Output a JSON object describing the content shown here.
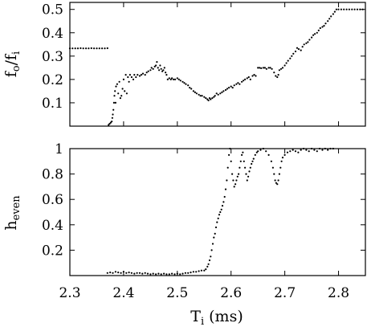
{
  "chart_data": [
    {
      "id": "ratio",
      "type": "scatter",
      "ylabel": {
        "main": "f",
        "sub1": "o",
        "mid": "/f",
        "sub2": "i"
      },
      "xlim": [
        2.3,
        2.85
      ],
      "ylim": [
        0,
        0.53
      ],
      "yticks": [
        0.1,
        0.2,
        0.3,
        0.4,
        0.5
      ],
      "xticks": [
        2.3,
        2.4,
        2.5,
        2.6,
        2.7,
        2.8
      ],
      "grid": false,
      "point_color": "#000000",
      "points": [
        [
          2.3,
          0.333
        ],
        [
          2.305,
          0.333
        ],
        [
          2.31,
          0.333
        ],
        [
          2.315,
          0.333
        ],
        [
          2.32,
          0.334
        ],
        [
          2.325,
          0.333
        ],
        [
          2.33,
          0.333
        ],
        [
          2.335,
          0.333
        ],
        [
          2.34,
          0.334
        ],
        [
          2.345,
          0.333
        ],
        [
          2.35,
          0.333
        ],
        [
          2.355,
          0.333
        ],
        [
          2.36,
          0.333
        ],
        [
          2.365,
          0.333
        ],
        [
          2.37,
          0.334
        ],
        [
          2.372,
          0.005
        ],
        [
          2.374,
          0.01
        ],
        [
          2.376,
          0.015
        ],
        [
          2.378,
          0.02
        ],
        [
          2.379,
          0.035
        ],
        [
          2.38,
          0.05
        ],
        [
          2.381,
          0.07
        ],
        [
          2.382,
          0.1
        ],
        [
          2.383,
          0.13
        ],
        [
          2.384,
          0.15
        ],
        [
          2.385,
          0.1
        ],
        [
          2.386,
          0.17
        ],
        [
          2.388,
          0.18
        ],
        [
          2.39,
          0.14
        ],
        [
          2.392,
          0.19
        ],
        [
          2.394,
          0.12
        ],
        [
          2.396,
          0.13
        ],
        [
          2.398,
          0.16
        ],
        [
          2.4,
          0.2
        ],
        [
          2.402,
          0.15
        ],
        [
          2.404,
          0.22
        ],
        [
          2.406,
          0.14
        ],
        [
          2.408,
          0.21
        ],
        [
          2.41,
          0.19
        ],
        [
          2.412,
          0.22
        ],
        [
          2.415,
          0.21
        ],
        [
          2.418,
          0.2
        ],
        [
          2.42,
          0.22
        ],
        [
          2.423,
          0.21
        ],
        [
          2.426,
          0.22
        ],
        [
          2.43,
          0.215
        ],
        [
          2.433,
          0.22
        ],
        [
          2.436,
          0.225
        ],
        [
          2.44,
          0.22
        ],
        [
          2.443,
          0.23
        ],
        [
          2.446,
          0.235
        ],
        [
          2.45,
          0.24
        ],
        [
          2.452,
          0.25
        ],
        [
          2.455,
          0.245
        ],
        [
          2.458,
          0.255
        ],
        [
          2.46,
          0.26
        ],
        [
          2.462,
          0.275
        ],
        [
          2.464,
          0.25
        ],
        [
          2.466,
          0.24
        ],
        [
          2.468,
          0.26
        ],
        [
          2.47,
          0.245
        ],
        [
          2.472,
          0.235
        ],
        [
          2.474,
          0.24
        ],
        [
          2.476,
          0.25
        ],
        [
          2.478,
          0.23
        ],
        [
          2.48,
          0.22
        ],
        [
          2.482,
          0.2
        ],
        [
          2.485,
          0.205
        ],
        [
          2.488,
          0.2
        ],
        [
          2.49,
          0.205
        ],
        [
          2.493,
          0.2
        ],
        [
          2.496,
          0.2
        ],
        [
          2.5,
          0.205
        ],
        [
          2.503,
          0.2
        ],
        [
          2.506,
          0.195
        ],
        [
          2.51,
          0.19
        ],
        [
          2.513,
          0.185
        ],
        [
          2.516,
          0.18
        ],
        [
          2.52,
          0.175
        ],
        [
          2.523,
          0.165
        ],
        [
          2.526,
          0.16
        ],
        [
          2.53,
          0.15
        ],
        [
          2.533,
          0.145
        ],
        [
          2.536,
          0.14
        ],
        [
          2.54,
          0.135
        ],
        [
          2.543,
          0.13
        ],
        [
          2.546,
          0.13
        ],
        [
          2.55,
          0.125
        ],
        [
          2.553,
          0.12
        ],
        [
          2.556,
          0.115
        ],
        [
          2.558,
          0.11
        ],
        [
          2.56,
          0.12
        ],
        [
          2.562,
          0.115
        ],
        [
          2.565,
          0.12
        ],
        [
          2.568,
          0.125
        ],
        [
          2.57,
          0.13
        ],
        [
          2.573,
          0.14
        ],
        [
          2.576,
          0.135
        ],
        [
          2.58,
          0.14
        ],
        [
          2.583,
          0.145
        ],
        [
          2.586,
          0.15
        ],
        [
          2.59,
          0.155
        ],
        [
          2.593,
          0.16
        ],
        [
          2.596,
          0.165
        ],
        [
          2.6,
          0.17
        ],
        [
          2.603,
          0.165
        ],
        [
          2.606,
          0.175
        ],
        [
          2.61,
          0.18
        ],
        [
          2.613,
          0.185
        ],
        [
          2.616,
          0.18
        ],
        [
          2.62,
          0.19
        ],
        [
          2.623,
          0.195
        ],
        [
          2.626,
          0.2
        ],
        [
          2.63,
          0.205
        ],
        [
          2.633,
          0.21
        ],
        [
          2.636,
          0.2
        ],
        [
          2.64,
          0.215
        ],
        [
          2.643,
          0.22
        ],
        [
          2.646,
          0.215
        ],
        [
          2.65,
          0.25
        ],
        [
          2.653,
          0.25
        ],
        [
          2.656,
          0.248
        ],
        [
          2.66,
          0.25
        ],
        [
          2.663,
          0.25
        ],
        [
          2.666,
          0.245
        ],
        [
          2.67,
          0.25
        ],
        [
          2.673,
          0.25
        ],
        [
          2.676,
          0.245
        ],
        [
          2.68,
          0.23
        ],
        [
          2.683,
          0.215
        ],
        [
          2.686,
          0.21
        ],
        [
          2.688,
          0.22
        ],
        [
          2.69,
          0.24
        ],
        [
          2.693,
          0.245
        ],
        [
          2.696,
          0.25
        ],
        [
          2.7,
          0.26
        ],
        [
          2.703,
          0.27
        ],
        [
          2.706,
          0.28
        ],
        [
          2.71,
          0.29
        ],
        [
          2.713,
          0.3
        ],
        [
          2.716,
          0.31
        ],
        [
          2.72,
          0.32
        ],
        [
          2.723,
          0.335
        ],
        [
          2.726,
          0.33
        ],
        [
          2.73,
          0.325
        ],
        [
          2.733,
          0.34
        ],
        [
          2.736,
          0.35
        ],
        [
          2.74,
          0.355
        ],
        [
          2.743,
          0.36
        ],
        [
          2.746,
          0.37
        ],
        [
          2.75,
          0.38
        ],
        [
          2.753,
          0.39
        ],
        [
          2.756,
          0.395
        ],
        [
          2.76,
          0.4
        ],
        [
          2.763,
          0.41
        ],
        [
          2.766,
          0.42
        ],
        [
          2.77,
          0.425
        ],
        [
          2.773,
          0.43
        ],
        [
          2.776,
          0.44
        ],
        [
          2.78,
          0.45
        ],
        [
          2.783,
          0.46
        ],
        [
          2.786,
          0.47
        ],
        [
          2.79,
          0.48
        ],
        [
          2.793,
          0.49
        ],
        [
          2.796,
          0.5
        ],
        [
          2.8,
          0.5
        ],
        [
          2.805,
          0.5
        ],
        [
          2.81,
          0.5
        ],
        [
          2.815,
          0.5
        ],
        [
          2.82,
          0.5
        ],
        [
          2.825,
          0.5
        ],
        [
          2.83,
          0.5
        ],
        [
          2.835,
          0.5
        ],
        [
          2.84,
          0.5
        ],
        [
          2.845,
          0.5
        ]
      ]
    },
    {
      "id": "heven",
      "type": "scatter",
      "ylabel": {
        "main": "h",
        "sub1": "even"
      },
      "xlabel": {
        "main": "T",
        "sub1": "i",
        "rest": " (ms)"
      },
      "xlim": [
        2.3,
        2.85
      ],
      "ylim": [
        0,
        1
      ],
      "yticks": [
        0.2,
        0.4,
        0.6,
        0.8,
        1
      ],
      "ytick_labels": [
        "0.2",
        "0.4",
        "0.6",
        "0.8",
        "1"
      ],
      "xticks": [
        2.3,
        2.4,
        2.5,
        2.6,
        2.7,
        2.8
      ],
      "xtick_labels": [
        "2.3",
        "2.4",
        "2.5",
        "2.6",
        "2.7",
        "2.8"
      ],
      "grid": false,
      "point_color": "#000000",
      "points": [
        [
          2.37,
          0.02
        ],
        [
          2.375,
          0.025
        ],
        [
          2.38,
          0.02
        ],
        [
          2.385,
          0.03
        ],
        [
          2.39,
          0.025
        ],
        [
          2.395,
          0.02
        ],
        [
          2.4,
          0.03
        ],
        [
          2.405,
          0.02
        ],
        [
          2.41,
          0.025
        ],
        [
          2.415,
          0.02
        ],
        [
          2.42,
          0.015
        ],
        [
          2.425,
          0.02
        ],
        [
          2.43,
          0.02
        ],
        [
          2.435,
          0.015
        ],
        [
          2.44,
          0.02
        ],
        [
          2.445,
          0.015
        ],
        [
          2.45,
          0.01
        ],
        [
          2.455,
          0.015
        ],
        [
          2.46,
          0.01
        ],
        [
          2.465,
          0.015
        ],
        [
          2.47,
          0.01
        ],
        [
          2.475,
          0.015
        ],
        [
          2.48,
          0.01
        ],
        [
          2.485,
          0.01
        ],
        [
          2.49,
          0.015
        ],
        [
          2.495,
          0.01
        ],
        [
          2.5,
          0.015
        ],
        [
          2.505,
          0.01
        ],
        [
          2.51,
          0.015
        ],
        [
          2.515,
          0.02
        ],
        [
          2.52,
          0.02
        ],
        [
          2.525,
          0.025
        ],
        [
          2.53,
          0.03
        ],
        [
          2.535,
          0.03
        ],
        [
          2.54,
          0.035
        ],
        [
          2.545,
          0.04
        ],
        [
          2.55,
          0.04
        ],
        [
          2.553,
          0.05
        ],
        [
          2.556,
          0.07
        ],
        [
          2.558,
          0.09
        ],
        [
          2.56,
          0.12
        ],
        [
          2.562,
          0.15
        ],
        [
          2.564,
          0.2
        ],
        [
          2.566,
          0.25
        ],
        [
          2.568,
          0.3
        ],
        [
          2.57,
          0.33
        ],
        [
          2.572,
          0.38
        ],
        [
          2.574,
          0.42
        ],
        [
          2.576,
          0.45
        ],
        [
          2.578,
          0.48
        ],
        [
          2.58,
          0.5
        ],
        [
          2.582,
          0.52
        ],
        [
          2.584,
          0.55
        ],
        [
          2.586,
          0.58
        ],
        [
          2.588,
          0.62
        ],
        [
          2.59,
          0.68
        ],
        [
          2.592,
          0.75
        ],
        [
          2.594,
          0.85
        ],
        [
          2.596,
          0.95
        ],
        [
          2.598,
          1.0
        ],
        [
          2.6,
          0.9
        ],
        [
          2.602,
          0.8
        ],
        [
          2.604,
          0.75
        ],
        [
          2.606,
          0.7
        ],
        [
          2.608,
          0.72
        ],
        [
          2.61,
          0.75
        ],
        [
          2.612,
          0.78
        ],
        [
          2.614,
          0.8
        ],
        [
          2.616,
          0.85
        ],
        [
          2.618,
          0.9
        ],
        [
          2.62,
          0.95
        ],
        [
          2.622,
          0.97
        ],
        [
          2.624,
          0.9
        ],
        [
          2.626,
          0.85
        ],
        [
          2.628,
          0.8
        ],
        [
          2.63,
          0.75
        ],
        [
          2.632,
          0.78
        ],
        [
          2.634,
          0.82
        ],
        [
          2.636,
          0.85
        ],
        [
          2.638,
          0.88
        ],
        [
          2.64,
          0.9
        ],
        [
          2.642,
          0.92
        ],
        [
          2.645,
          0.95
        ],
        [
          2.648,
          0.97
        ],
        [
          2.65,
          0.98
        ],
        [
          2.655,
          0.99
        ],
        [
          2.66,
          1.0
        ],
        [
          2.665,
          0.98
        ],
        [
          2.67,
          0.95
        ],
        [
          2.675,
          0.9
        ],
        [
          2.678,
          0.85
        ],
        [
          2.68,
          0.8
        ],
        [
          2.682,
          0.75
        ],
        [
          2.684,
          0.73
        ],
        [
          2.686,
          0.72
        ],
        [
          2.688,
          0.75
        ],
        [
          2.69,
          0.8
        ],
        [
          2.692,
          0.85
        ],
        [
          2.694,
          0.9
        ],
        [
          2.696,
          0.93
        ],
        [
          2.7,
          0.95
        ],
        [
          2.705,
          0.97
        ],
        [
          2.71,
          0.98
        ],
        [
          2.715,
          0.99
        ],
        [
          2.72,
          0.98
        ],
        [
          2.725,
          0.97
        ],
        [
          2.73,
          0.99
        ],
        [
          2.735,
          1.0
        ],
        [
          2.74,
          0.99
        ],
        [
          2.745,
          0.98
        ],
        [
          2.75,
          1.0
        ],
        [
          2.755,
          0.99
        ],
        [
          2.76,
          0.98
        ],
        [
          2.765,
          1.0
        ],
        [
          2.77,
          0.99
        ],
        [
          2.775,
          1.0
        ],
        [
          2.78,
          0.99
        ],
        [
          2.785,
          1.0
        ],
        [
          2.79,
          1.0
        ]
      ]
    }
  ]
}
